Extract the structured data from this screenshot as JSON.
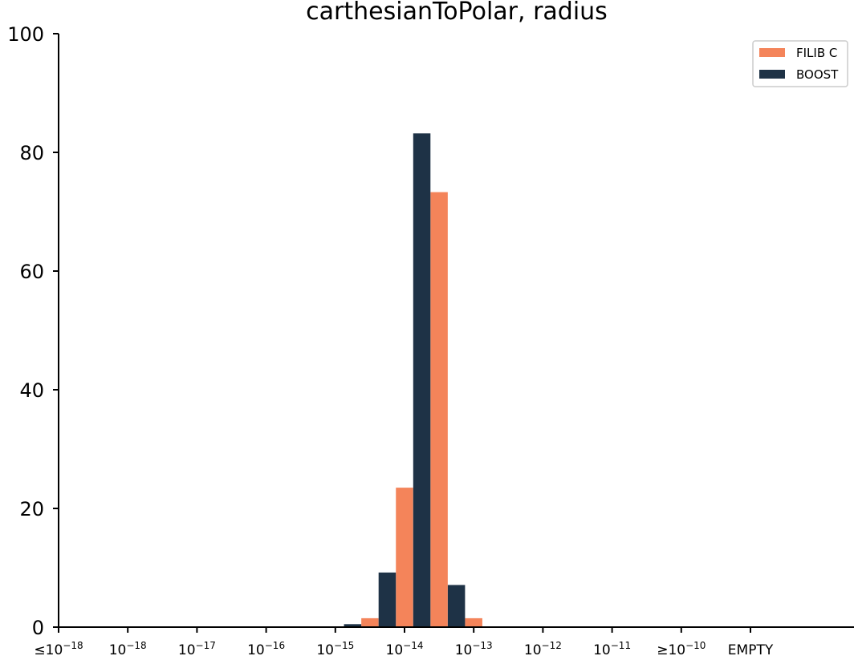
{
  "chart_data": {
    "type": "bar",
    "title": "carthesianToPolar, radius",
    "xlabel": "",
    "ylabel": "",
    "ylim": [
      0,
      100
    ],
    "yticks": [
      0,
      20,
      40,
      60,
      80,
      100
    ],
    "grid": false,
    "legend_position": "top-right",
    "categories": [
      {
        "prefix": "≤",
        "base": "10",
        "exp": "−18"
      },
      {
        "prefix": "",
        "base": "10",
        "exp": "−18"
      },
      {
        "prefix": "",
        "base": "10",
        "exp": "−17"
      },
      {
        "prefix": "",
        "base": "10",
        "exp": "−16"
      },
      {
        "prefix": "",
        "base": "10",
        "exp": "−15"
      },
      {
        "prefix": "",
        "base": "10",
        "exp": "−14"
      },
      {
        "prefix": "",
        "base": "10",
        "exp": "−13"
      },
      {
        "prefix": "",
        "base": "10",
        "exp": "−12"
      },
      {
        "prefix": "",
        "base": "10",
        "exp": "−11"
      },
      {
        "prefix": "≥",
        "base": "10",
        "exp": "−10"
      },
      {
        "prefix": "",
        "base": "EMPTY",
        "exp": ""
      }
    ],
    "series": [
      {
        "name": "FILIB C",
        "color": "#f4845a",
        "bins": [
          {
            "x": 4.5,
            "y": 1.5
          },
          {
            "x": 5.0,
            "y": 23.5
          },
          {
            "x": 5.5,
            "y": 73.3
          },
          {
            "x": 6.0,
            "y": 1.5
          }
        ]
      },
      {
        "name": "BOOST",
        "color": "#1e3246",
        "bins": [
          {
            "x": 4.25,
            "y": 0.5
          },
          {
            "x": 4.75,
            "y": 9.2
          },
          {
            "x": 5.25,
            "y": 83.2
          },
          {
            "x": 5.75,
            "y": 7.1
          }
        ]
      }
    ]
  }
}
